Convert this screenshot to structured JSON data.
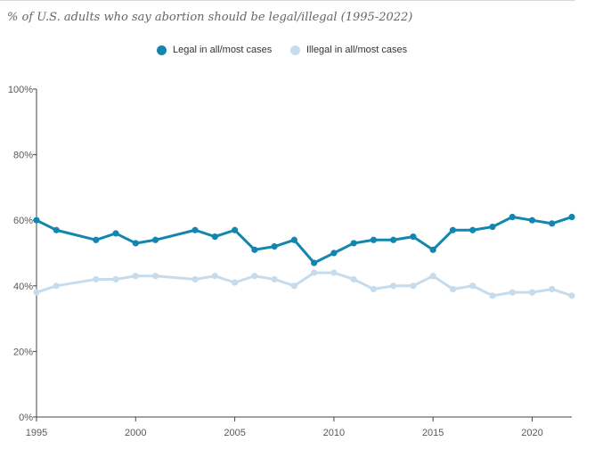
{
  "chart_data": {
    "type": "line",
    "title": "% of U.S. adults who say abortion should be legal/illegal (1995-2022)",
    "xlabel": "",
    "ylabel": "",
    "xlim": [
      1995,
      2022
    ],
    "ylim": [
      0,
      100
    ],
    "grid": false,
    "legend_position": "top-center",
    "x_ticks": [
      {
        "value": 1995,
        "label": "1995"
      },
      {
        "value": 2000,
        "label": "2000"
      },
      {
        "value": 2005,
        "label": "2005"
      },
      {
        "value": 2010,
        "label": "2010"
      },
      {
        "value": 2015,
        "label": "2015"
      },
      {
        "value": 2020,
        "label": "2020"
      }
    ],
    "y_ticks": [
      {
        "value": 0,
        "label": "0%"
      },
      {
        "value": 20,
        "label": "20%"
      },
      {
        "value": 40,
        "label": "40%"
      },
      {
        "value": 60,
        "label": "60%"
      },
      {
        "value": 80,
        "label": "80%"
      },
      {
        "value": 100,
        "label": "100%"
      }
    ],
    "series": [
      {
        "name": "Legal in all/most cases",
        "color": "#1386b0",
        "points": [
          [
            1995,
            60
          ],
          [
            1996,
            57
          ],
          [
            1998,
            54
          ],
          [
            1999,
            56
          ],
          [
            2000,
            53
          ],
          [
            2001,
            54
          ],
          [
            2003,
            57
          ],
          [
            2004,
            55
          ],
          [
            2005,
            57
          ],
          [
            2006,
            51
          ],
          [
            2007,
            52
          ],
          [
            2008,
            54
          ],
          [
            2009,
            47
          ],
          [
            2010,
            50
          ],
          [
            2011,
            53
          ],
          [
            2012,
            54
          ],
          [
            2013,
            54
          ],
          [
            2014,
            55
          ],
          [
            2015,
            51
          ],
          [
            2016,
            57
          ],
          [
            2017,
            57
          ],
          [
            2018,
            58
          ],
          [
            2019,
            61
          ],
          [
            2020,
            60
          ],
          [
            2021,
            59
          ],
          [
            2022,
            61
          ]
        ]
      },
      {
        "name": "Illegal in all/most cases",
        "color": "#c6dcec",
        "points": [
          [
            1995,
            38
          ],
          [
            1996,
            40
          ],
          [
            1998,
            42
          ],
          [
            1999,
            42
          ],
          [
            2000,
            43
          ],
          [
            2001,
            43
          ],
          [
            2003,
            42
          ],
          [
            2004,
            43
          ],
          [
            2005,
            41
          ],
          [
            2006,
            43
          ],
          [
            2007,
            42
          ],
          [
            2008,
            40
          ],
          [
            2009,
            44
          ],
          [
            2010,
            44
          ],
          [
            2011,
            42
          ],
          [
            2012,
            39
          ],
          [
            2013,
            40
          ],
          [
            2014,
            40
          ],
          [
            2015,
            43
          ],
          [
            2016,
            39
          ],
          [
            2017,
            40
          ],
          [
            2018,
            37
          ],
          [
            2019,
            38
          ],
          [
            2020,
            38
          ],
          [
            2021,
            39
          ],
          [
            2022,
            37
          ]
        ]
      }
    ]
  }
}
